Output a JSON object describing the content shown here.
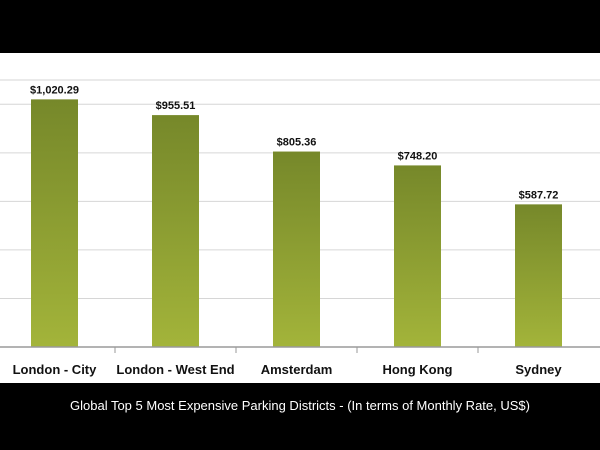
{
  "chart_data": {
    "type": "bar",
    "title": "Global Top 5 Most Expensive Parking Districts - (In terms of Monthly Rate, US$)",
    "categories": [
      "London - City",
      "London - West End",
      "Amsterdam",
      "Hong Kong",
      "Sydney"
    ],
    "values": [
      1020.29,
      955.51,
      805.36,
      748.2,
      587.72
    ],
    "data_labels": [
      "$1,020.29",
      "$955.51",
      "$805.36",
      "$748.20",
      "$587.72"
    ],
    "ylim": [
      0,
      1100
    ],
    "grid": true,
    "legend": "none",
    "colors": {
      "bar_top": "#76882a",
      "bar_bottom": "#a3b43a",
      "grid": "#d6d6d6",
      "axis": "#9a9a9a"
    }
  }
}
